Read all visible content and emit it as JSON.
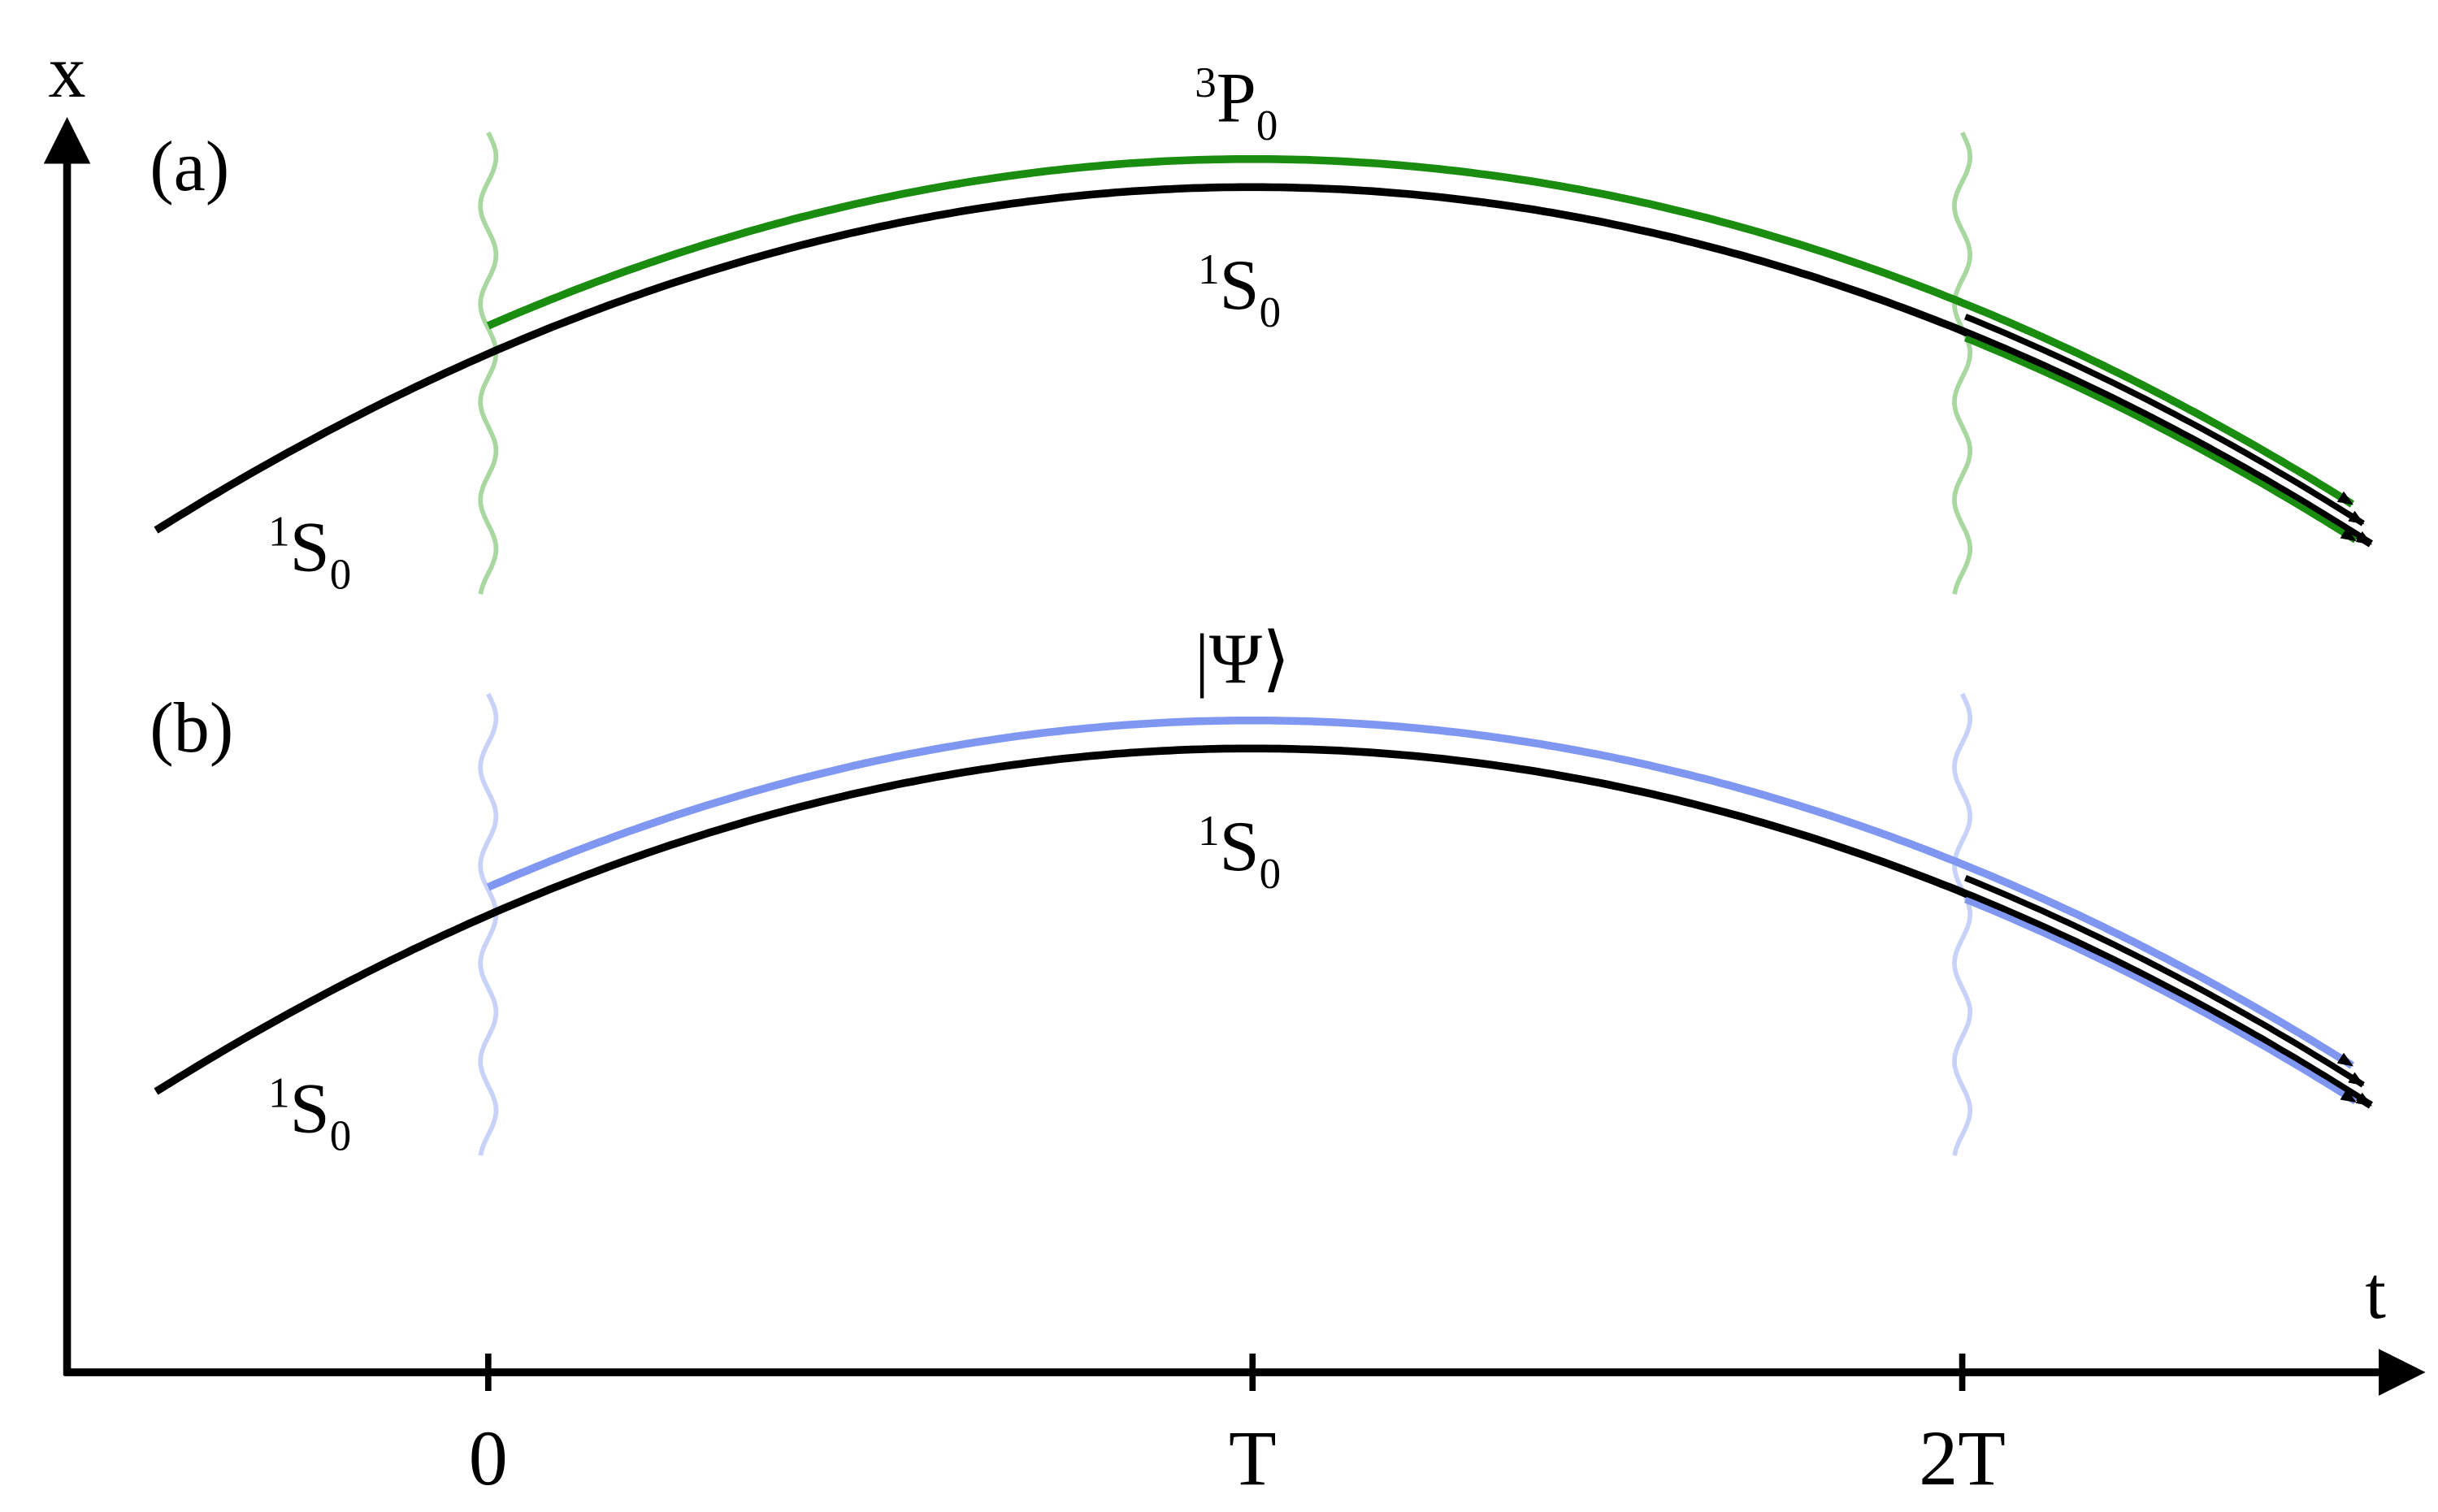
{
  "axes": {
    "vertical_label": "x",
    "horizontal_label": "t",
    "ticks": [
      "0",
      "T",
      "2T"
    ]
  },
  "panels": [
    {
      "label": "(a)",
      "upper_state": {
        "sup": "3",
        "main": "P",
        "sub": "0"
      },
      "middle_state": {
        "sup": "1",
        "main": "S",
        "sub": "0"
      },
      "initial_state": {
        "sup": "1",
        "main": "S",
        "sub": "0"
      }
    },
    {
      "label": "(b)",
      "upper_state": {
        "main": "|Ψ⟩"
      },
      "middle_state": {
        "sup": "1",
        "main": "S",
        "sub": "0"
      },
      "initial_state": {
        "sup": "1",
        "main": "S",
        "sub": "0"
      }
    }
  ]
}
